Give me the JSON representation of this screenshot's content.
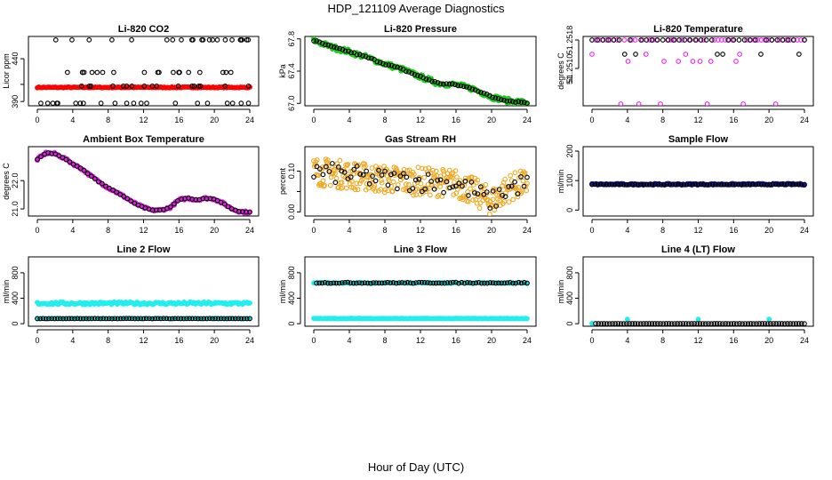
{
  "figure": {
    "title": "HDP_121109  Average Diagnostics",
    "xlabel": "Hour of Day (UTC)"
  },
  "chart_data": [
    {
      "type": "scatter",
      "title": "Li-820 CO2",
      "ylabel": "Licor ppm",
      "xlim": [
        0,
        24
      ],
      "xticks": [
        0,
        4,
        8,
        12,
        16,
        20,
        24
      ],
      "ylim": [
        385,
        466
      ],
      "yticks": [
        390,
        410,
        440
      ],
      "ytick_labels": [
        "390",
        "",
        "440"
      ],
      "series": [
        {
          "color": "#ff0000",
          "marker": "dot",
          "kind": "band",
          "x_range": [
            0,
            24
          ],
          "y": [
            406,
            407
          ],
          "n": 140
        },
        {
          "color": "#000000",
          "marker": "open-circle",
          "kind": "sparse",
          "x_range": [
            0.3,
            24
          ],
          "y": [
            388,
            408,
            424,
            462
          ]
        }
      ]
    },
    {
      "type": "scatter",
      "title": "Li-820 Pressure",
      "ylabel": "kPa",
      "xlim": [
        0,
        24
      ],
      "xticks": [
        0,
        4,
        8,
        12,
        16,
        20,
        24
      ],
      "ylim": [
        66.97,
        67.83
      ],
      "yticks": [
        67.0,
        67.4,
        67.8
      ],
      "ytick_labels": [
        "67.0",
        "67.4",
        "67.8"
      ],
      "series": [
        {
          "color": "#22cc22",
          "marker": "dot",
          "kind": "curve",
          "x": [
            0,
            2,
            4,
            6,
            8,
            10,
            12,
            14,
            16,
            18,
            20,
            22,
            24
          ],
          "y": [
            67.78,
            67.7,
            67.64,
            67.57,
            67.49,
            67.42,
            67.33,
            67.25,
            67.23,
            67.18,
            67.08,
            67.03,
            67.01
          ],
          "jitter": 0.03,
          "n": 150
        },
        {
          "color": "#000000",
          "marker": "open-circle",
          "kind": "curve",
          "x": [
            0,
            2,
            4,
            6,
            8,
            10,
            12,
            14,
            16,
            18,
            20,
            22,
            24
          ],
          "y": [
            67.78,
            67.7,
            67.64,
            67.57,
            67.49,
            67.42,
            67.33,
            67.25,
            67.23,
            67.18,
            67.08,
            67.03,
            67.01
          ],
          "jitter": 0.01,
          "n": 75
        }
      ]
    },
    {
      "type": "scatter",
      "title": "Li-820 Temperature",
      "ylabel": "degrees C",
      "xlim": [
        0,
        24
      ],
      "xticks": [
        0,
        4,
        8,
        12,
        16,
        20,
        24
      ],
      "ylim": [
        51.24995,
        51.2519
      ],
      "yticks": [
        51.251,
        51.2518
      ],
      "ytick_labels": [
        "51.2510",
        "51.2518"
      ],
      "extra_tick_labels": [
        "51",
        "51.2510"
      ],
      "series": [
        {
          "color": "#ee22ee",
          "marker": "open-circle",
          "kind": "levels",
          "x_range": [
            0,
            24
          ],
          "y": [
            51.2518,
            51.2514,
            51.2512,
            51.25
          ],
          "n": 60
        },
        {
          "color": "#000000",
          "marker": "open-circle",
          "kind": "levels",
          "x_range": [
            0,
            24
          ],
          "y": [
            51.2518,
            51.2514
          ],
          "n": 40
        }
      ]
    },
    {
      "type": "scatter",
      "title": "Ambient Box Temperature",
      "ylabel": "degrees C",
      "xlim": [
        0,
        24
      ],
      "xticks": [
        0,
        4,
        8,
        12,
        16,
        20,
        24
      ],
      "ylim": [
        20.75,
        23.2
      ],
      "yticks": [
        21.0,
        22.0
      ],
      "ytick_labels": [
        "21.0",
        "22.0"
      ],
      "series": [
        {
          "color": "#dd22dd",
          "marker": "dot",
          "kind": "curve",
          "x": [
            0,
            1,
            2,
            3,
            4,
            5,
            6,
            7,
            8,
            9,
            10,
            11,
            12,
            13,
            14,
            15,
            16,
            17,
            18,
            19,
            20,
            21,
            22,
            23,
            24
          ],
          "y": [
            22.75,
            22.98,
            22.95,
            22.8,
            22.6,
            22.42,
            22.18,
            21.95,
            21.75,
            21.58,
            21.4,
            21.2,
            21.05,
            20.95,
            20.96,
            21.05,
            21.32,
            21.38,
            21.32,
            21.38,
            21.35,
            21.2,
            21.0,
            20.9,
            20.88
          ],
          "jitter": 0.04,
          "n": 150
        },
        {
          "color": "#000000",
          "marker": "open-circle",
          "kind": "curve",
          "x": [
            0,
            1,
            2,
            3,
            4,
            5,
            6,
            7,
            8,
            9,
            10,
            11,
            12,
            13,
            14,
            15,
            16,
            17,
            18,
            19,
            20,
            21,
            22,
            23,
            24
          ],
          "y": [
            22.75,
            22.98,
            22.95,
            22.8,
            22.6,
            22.42,
            22.18,
            21.95,
            21.75,
            21.58,
            21.4,
            21.2,
            21.05,
            20.95,
            20.96,
            21.05,
            21.32,
            21.38,
            21.32,
            21.38,
            21.35,
            21.2,
            21.0,
            20.9,
            20.88
          ],
          "jitter": 0.01,
          "n": 60
        }
      ]
    },
    {
      "type": "scatter",
      "title": "Gas Stream RH",
      "ylabel": "percent",
      "xlim": [
        0,
        24
      ],
      "xticks": [
        0,
        4,
        8,
        12,
        16,
        20,
        24
      ],
      "ylim": [
        -0.01,
        0.16
      ],
      "yticks": [
        0.0,
        0.05,
        0.1
      ],
      "ytick_labels": [
        "0.00",
        "",
        "0.10"
      ],
      "series": [
        {
          "color": "#f0a820",
          "marker": "open-circle",
          "kind": "curve",
          "x": [
            0,
            4,
            8,
            12,
            16,
            18,
            20,
            22,
            24
          ],
          "y": [
            0.1,
            0.09,
            0.08,
            0.075,
            0.07,
            0.05,
            0.025,
            0.06,
            0.07
          ],
          "jitter": 0.035,
          "n": 320
        },
        {
          "color": "#000000",
          "marker": "open-circle",
          "kind": "curve",
          "x": [
            0,
            4,
            8,
            12,
            16,
            18,
            20,
            22,
            24
          ],
          "y": [
            0.1,
            0.09,
            0.08,
            0.075,
            0.07,
            0.05,
            0.025,
            0.06,
            0.07
          ],
          "jitter": 0.025,
          "n": 70
        }
      ]
    },
    {
      "type": "scatter",
      "title": "Sample Flow",
      "ylabel": "ml/min",
      "xlim": [
        0,
        24
      ],
      "xticks": [
        0,
        4,
        8,
        12,
        16,
        20,
        24
      ],
      "ylim": [
        -20,
        215
      ],
      "yticks": [
        0,
        100,
        200
      ],
      "ytick_labels": [
        "0",
        "100",
        "200"
      ],
      "series": [
        {
          "color": "#1a1aaa",
          "marker": "dot",
          "kind": "band",
          "x_range": [
            0,
            24
          ],
          "y": [
            85,
            90
          ],
          "n": 150
        },
        {
          "color": "#000000",
          "marker": "open-circle",
          "kind": "band",
          "x_range": [
            0,
            24
          ],
          "y": [
            86,
            88
          ],
          "n": 75
        }
      ]
    },
    {
      "type": "scatter",
      "title": "Line 2 Flow",
      "ylabel": "ml/min",
      "xlim": [
        0,
        24
      ],
      "xticks": [
        0,
        4,
        8,
        12,
        16,
        20,
        24
      ],
      "ylim": [
        -40,
        1050
      ],
      "yticks": [
        0,
        400,
        800
      ],
      "ytick_labels": [
        "0",
        "400",
        "800"
      ],
      "series": [
        {
          "color": "#22eeee",
          "marker": "dot",
          "kind": "band",
          "x_range": [
            0,
            24
          ],
          "y": [
            300,
            340
          ],
          "n": 150
        },
        {
          "color": "#22eeee",
          "marker": "dot",
          "kind": "band",
          "x_range": [
            0,
            24
          ],
          "y": [
            75,
            85
          ],
          "n": 60
        },
        {
          "color": "#000000",
          "marker": "open-circle",
          "kind": "band",
          "x_range": [
            0,
            24
          ],
          "y": [
            78,
            82
          ],
          "n": 75
        }
      ]
    },
    {
      "type": "scatter",
      "title": "Line 3 Flow",
      "ylabel": "ml/min",
      "xlim": [
        0,
        24
      ],
      "xticks": [
        0,
        4,
        8,
        12,
        16,
        20,
        24
      ],
      "ylim": [
        -40,
        1050
      ],
      "yticks": [
        0,
        400,
        800
      ],
      "ytick_labels": [
        "0",
        "400",
        "800"
      ],
      "series": [
        {
          "color": "#22eeee",
          "marker": "dot",
          "kind": "band",
          "x_range": [
            0,
            24
          ],
          "y": [
            78,
            85
          ],
          "n": 150
        },
        {
          "color": "#22eeee",
          "marker": "dot",
          "kind": "band",
          "x_range": [
            0,
            24
          ],
          "y": [
            630,
            650
          ],
          "n": 60
        },
        {
          "color": "#000000",
          "marker": "open-circle",
          "kind": "band",
          "x_range": [
            0.3,
            24
          ],
          "y": [
            635,
            650
          ],
          "n": 75
        }
      ]
    },
    {
      "type": "scatter",
      "title": "Line 4 (LT) Flow",
      "ylabel": "ml/min",
      "xlim": [
        0,
        24
      ],
      "xticks": [
        0,
        4,
        8,
        12,
        16,
        20,
        24
      ],
      "ylim": [
        -40,
        1050
      ],
      "yticks": [
        0,
        400,
        800
      ],
      "ytick_labels": [
        "0",
        "400",
        "800"
      ],
      "series": [
        {
          "color": "#22eeee",
          "marker": "dot",
          "kind": "points",
          "x": [
            0,
            4,
            12,
            20
          ],
          "y": [
            5,
            70,
            70,
            70
          ]
        },
        {
          "color": "#000000",
          "marker": "open-circle",
          "kind": "band",
          "x_range": [
            0.4,
            24
          ],
          "y": [
            0,
            3
          ],
          "n": 75
        }
      ]
    }
  ]
}
